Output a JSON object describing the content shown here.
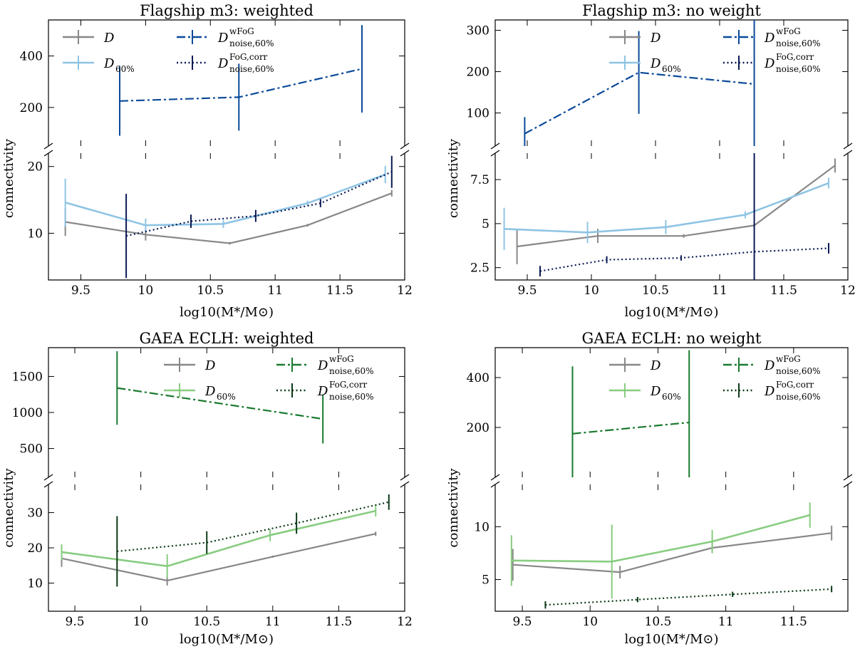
{
  "chart_data": [
    {
      "type": "line",
      "title": "Flagship m3: weighted",
      "xlabel": "log10(M*/M⊙)",
      "ylabel": "connectivity",
      "xlim": [
        9.25,
        12.0
      ],
      "xticks": [
        9.5,
        10.0,
        10.5,
        11.0,
        11.5,
        12.0
      ],
      "top_ylim": [
        50,
        540
      ],
      "top_yticks": [
        200,
        400
      ],
      "bottom_ylim": [
        3,
        22
      ],
      "bottom_yticks": [
        10,
        20
      ],
      "series": [
        {
          "name": "D",
          "color": "#888888",
          "style": "solid",
          "panel": "bottom",
          "x": [
            9.38,
            10.0,
            10.65,
            11.25,
            11.9
          ],
          "y": [
            11.7,
            9.8,
            8.5,
            11.2,
            16.0
          ],
          "err": [
            2.1,
            0.9,
            0.2,
            0.2,
            0.5
          ]
        },
        {
          "name": "D60%",
          "color": "#8ec4e4",
          "style": "solid",
          "panel": "bottom",
          "x": [
            9.38,
            10.0,
            10.6,
            11.25,
            11.85
          ],
          "y": [
            14.6,
            11.2,
            11.4,
            14.5,
            18.8
          ],
          "err": [
            3.6,
            1.0,
            0.6,
            0.4,
            1.3
          ]
        },
        {
          "name": "D wFoG noise,60%",
          "color": "#0b4a9a",
          "style": "dashdot",
          "panel": "top",
          "x": [
            9.8,
            10.72,
            11.67
          ],
          "y": [
            225,
            240,
            350
          ],
          "err": [
            135,
            130,
            170
          ]
        },
        {
          "name": "D FoG,corr noise,60%",
          "color": "#0b1a55",
          "style": "dotted",
          "panel": "bottom",
          "x": [
            9.85,
            10.35,
            10.85,
            11.35,
            11.9
          ],
          "y": [
            9.6,
            11.8,
            12.6,
            14.5,
            19.2
          ],
          "err": [
            6.3,
            1.0,
            0.9,
            0.6,
            2.4
          ]
        }
      ]
    },
    {
      "type": "line",
      "title": "Flagship m3: no weight",
      "xlabel": "log10(M*/M⊙)",
      "ylabel": "connectivity",
      "xlim": [
        9.25,
        12.0
      ],
      "xticks": [
        9.5,
        10.0,
        10.5,
        11.0,
        11.5,
        12.0
      ],
      "top_ylim": [
        20,
        325
      ],
      "top_yticks": [
        100,
        200,
        300
      ],
      "bottom_ylim": [
        1.8,
        9.0
      ],
      "bottom_yticks": [
        2.5,
        5.0,
        7.5
      ],
      "series": [
        {
          "name": "D",
          "color": "#888888",
          "style": "solid",
          "panel": "bottom",
          "x": [
            9.42,
            10.05,
            10.72,
            11.27,
            11.9
          ],
          "y": [
            3.7,
            4.3,
            4.3,
            4.9,
            8.3
          ],
          "err": [
            1.0,
            0.4,
            0.1,
            0.1,
            0.4
          ]
        },
        {
          "name": "D60%",
          "color": "#8ec4e4",
          "style": "solid",
          "panel": "bottom",
          "x": [
            9.32,
            9.97,
            10.58,
            11.2,
            11.85
          ],
          "y": [
            4.7,
            4.5,
            4.8,
            5.5,
            7.3
          ],
          "err": [
            1.2,
            0.6,
            0.4,
            0.2,
            0.3
          ]
        },
        {
          "name": "D wFoG noise,60%",
          "color": "#0b4a9a",
          "style": "dashdot",
          "panel": "top",
          "x": [
            9.48,
            10.37,
            11.27
          ],
          "y": [
            50,
            198,
            170
          ],
          "err": [
            40,
            100,
            170
          ]
        },
        {
          "name": "D FoG,corr noise,60%",
          "color": "#0b1a55",
          "style": "dotted",
          "panel": "bottom",
          "x": [
            9.6,
            10.12,
            10.7,
            11.27,
            11.85
          ],
          "y": [
            2.3,
            2.95,
            3.05,
            3.4,
            3.6
          ],
          "err": [
            0.3,
            0.2,
            0.15,
            5.8,
            0.3
          ]
        }
      ]
    },
    {
      "type": "line",
      "title": "GAEA ECLH: weighted",
      "xlabel": "log10(M*/M⊙)",
      "ylabel": "connectivity",
      "xlim": [
        9.3,
        12.0
      ],
      "xticks": [
        9.5,
        10.0,
        10.5,
        11.0,
        11.5,
        12.0
      ],
      "top_ylim": [
        100,
        1900
      ],
      "top_yticks": [
        500,
        1000,
        1500
      ],
      "bottom_ylim": [
        2,
        38
      ],
      "bottom_yticks": [
        10,
        20,
        30
      ],
      "series": [
        {
          "name": "D",
          "color": "#888888",
          "style": "solid",
          "panel": "bottom",
          "x": [
            9.4,
            10.2,
            11.0,
            11.78
          ],
          "y": [
            17.0,
            10.7,
            17.5,
            24.0
          ],
          "err": [
            2.4,
            1.4,
            0.3,
            0.6
          ]
        },
        {
          "name": "D60%",
          "color": "#88cc80",
          "style": "solid",
          "panel": "bottom",
          "x": [
            9.4,
            10.2,
            10.98,
            11.78
          ],
          "y": [
            18.8,
            14.8,
            23.6,
            30.5
          ],
          "err": [
            2.2,
            3.4,
            1.7,
            1.6
          ]
        },
        {
          "name": "D wFoG noise,60%",
          "color": "#1a7a2e",
          "style": "dashdot",
          "panel": "top",
          "x": [
            9.82,
            11.38
          ],
          "y": [
            1340,
            910
          ],
          "err": [
            510,
            340
          ]
        },
        {
          "name": "D FoG,corr noise,60%",
          "color": "#0c3a18",
          "style": "dotted",
          "panel": "bottom",
          "x": [
            9.82,
            10.5,
            11.18,
            11.88
          ],
          "y": [
            19.0,
            21.5,
            27.0,
            33.0
          ],
          "err": [
            10.0,
            3.2,
            3.0,
            2.2
          ]
        }
      ]
    },
    {
      "type": "line",
      "title": "GAEA ECLH: no weight",
      "xlabel": "log10(M*/M⊙)",
      "ylabel": "connectivity",
      "xlim": [
        9.3,
        11.9
      ],
      "xticks": [
        9.5,
        10.0,
        10.5,
        11.0,
        11.5
      ],
      "top_ylim": [
        0,
        520
      ],
      "top_yticks": [
        200,
        400
      ],
      "bottom_ylim": [
        2,
        14
      ],
      "bottom_yticks": [
        5,
        10
      ],
      "series": [
        {
          "name": "D",
          "color": "#888888",
          "style": "solid",
          "panel": "bottom",
          "x": [
            9.43,
            10.22,
            10.9,
            11.78
          ],
          "y": [
            6.4,
            5.7,
            8.0,
            9.4
          ],
          "err": [
            1.5,
            0.6,
            0.5,
            0.7
          ]
        },
        {
          "name": "D60%",
          "color": "#88cc80",
          "style": "solid",
          "panel": "bottom",
          "x": [
            9.42,
            10.16,
            10.9,
            11.62
          ],
          "y": [
            6.8,
            6.7,
            8.6,
            11.1
          ],
          "err": [
            2.4,
            3.5,
            1.1,
            1.2
          ]
        },
        {
          "name": "D wFoG noise,60%",
          "color": "#1a7a2e",
          "style": "dashdot",
          "panel": "top",
          "x": [
            9.87,
            10.73
          ],
          "y": [
            175,
            220
          ],
          "err": [
            270,
            290
          ]
        },
        {
          "name": "D FoG,corr noise,60%",
          "color": "#0c3a18",
          "style": "dotted",
          "panel": "bottom",
          "x": [
            9.67,
            10.35,
            11.05,
            11.78
          ],
          "y": [
            2.6,
            3.1,
            3.6,
            4.1
          ],
          "err": [
            0.35,
            0.25,
            0.25,
            0.3
          ]
        }
      ]
    }
  ]
}
